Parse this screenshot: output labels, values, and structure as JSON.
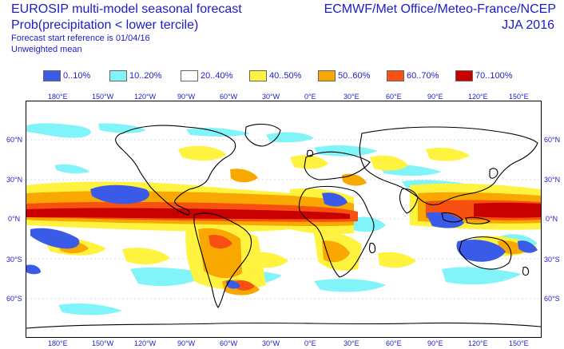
{
  "header": {
    "title": "EUROSIP multi-model seasonal forecast",
    "subtitle": "Prob(precipitation < lower tercile)",
    "start_reference": "Forecast start reference is 01/04/16",
    "weighting": "Unweighted mean",
    "models": "ECMWF/Met Office/Meteo-France/NCEP",
    "season": "JJA 2016"
  },
  "legend": [
    {
      "label": "0..10%",
      "color": "#3a5ae8"
    },
    {
      "label": "10..20%",
      "color": "#80f4f8"
    },
    {
      "label": "20..40%",
      "color": "#ffffff"
    },
    {
      "label": "40..50%",
      "color": "#fff340"
    },
    {
      "label": "50..60%",
      "color": "#f8a800"
    },
    {
      "label": "60..70%",
      "color": "#f85010"
    },
    {
      "label": "70..100%",
      "color": "#c80000"
    }
  ],
  "axes": {
    "lon_labels_top": [
      "180°E",
      "150°W",
      "120°W",
      "90°W",
      "60°W",
      "30°W",
      "0°E",
      "30°E",
      "60°E",
      "90°E",
      "120°E",
      "150°E"
    ],
    "lon_labels_bottom": [
      "180°E",
      "150°W",
      "120°W",
      "90°W",
      "60°W",
      "30°W",
      "0°E",
      "30°E",
      "60°E",
      "90°E",
      "120°E",
      "150°E"
    ],
    "lat_labels_left": [
      "60°N",
      "30°N",
      "0°N",
      "30°S",
      "60°S"
    ],
    "lat_labels_right": [
      "60°N",
      "30°N",
      "0°N",
      "30°S",
      "60°S"
    ]
  }
}
